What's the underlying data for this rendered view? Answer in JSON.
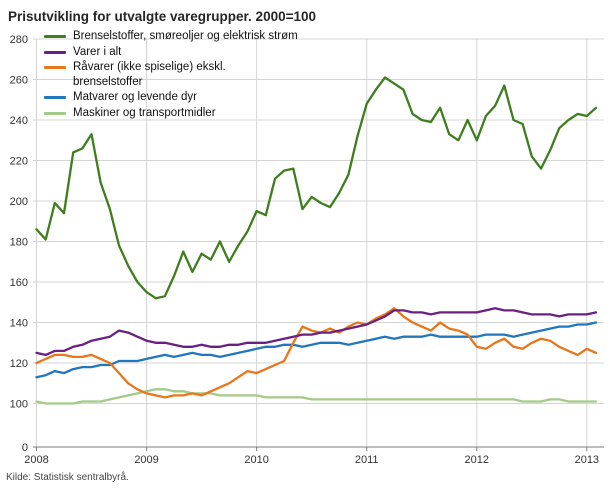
{
  "title": "Prisutvikling for utvalgte varegrupper. 2000=100",
  "source": "Kilde: Statistisk sentralbyrå.",
  "chart_data": {
    "type": "line",
    "frequency": "monthly",
    "x_start": "2008-01",
    "x_end": "2013-02",
    "x_tick_labels": [
      "2008",
      "2009",
      "2010",
      "2011",
      "2012",
      "2013"
    ],
    "y_ticks": [
      0,
      100,
      120,
      140,
      160,
      180,
      200,
      220,
      240,
      260,
      280
    ],
    "ylim_main": [
      100,
      280
    ],
    "axis_break_above_zero": true,
    "grid": true,
    "legend_position": "top-left",
    "colors": {
      "grid": "#d4d4d4",
      "axis": "#7a7a7a",
      "tick_text": "#333333"
    },
    "series": [
      {
        "name": "Brenselstoffer, smøreoljer og elektrisk strøm",
        "color": "#3f7e1e",
        "values": [
          186,
          181,
          199,
          194,
          224,
          226,
          233,
          209,
          196,
          178,
          168,
          160,
          155,
          152,
          153,
          163,
          175,
          165,
          174,
          171,
          180,
          170,
          178,
          185,
          195,
          193,
          211,
          215,
          216,
          196,
          202,
          199,
          197,
          204,
          213,
          232,
          248,
          255,
          261,
          258,
          255,
          243,
          240,
          239,
          246,
          233,
          230,
          240,
          230,
          242,
          247,
          257,
          240,
          238,
          222,
          216,
          225,
          236,
          240,
          243,
          242,
          246
        ]
      },
      {
        "name": "Varer i alt",
        "color": "#6a2082",
        "values": [
          125,
          124,
          126,
          126,
          128,
          129,
          131,
          132,
          133,
          136,
          135,
          133,
          131,
          130,
          130,
          129,
          128,
          128,
          129,
          128,
          128,
          129,
          129,
          130,
          130,
          130,
          131,
          132,
          133,
          134,
          134,
          135,
          135,
          136,
          137,
          138,
          139,
          141,
          143,
          146,
          146,
          145,
          145,
          144,
          145,
          145,
          145,
          145,
          145,
          146,
          147,
          146,
          146,
          145,
          144,
          144,
          144,
          143,
          144,
          144,
          144,
          145
        ]
      },
      {
        "name": "Råvarer (ikke spiselige) ekskl. brenselstoffer",
        "legend_label": "Råvarer (ikke spiselige) ekskl.\nbrenselstoffer",
        "color": "#e8761b",
        "values": [
          120,
          122,
          124,
          124,
          123,
          123,
          124,
          122,
          120,
          115,
          110,
          107,
          105,
          104,
          103,
          104,
          104,
          105,
          104,
          106,
          108,
          110,
          113,
          116,
          115,
          117,
          119,
          121,
          130,
          138,
          136,
          135,
          137,
          135,
          138,
          140,
          139,
          142,
          144,
          147,
          143,
          140,
          138,
          136,
          140,
          137,
          136,
          134,
          128,
          127,
          130,
          132,
          128,
          127,
          130,
          132,
          131,
          128,
          126,
          124,
          127,
          125
        ]
      },
      {
        "name": "Matvarer og levende dyr",
        "color": "#2176bd",
        "values": [
          113,
          114,
          116,
          115,
          117,
          118,
          118,
          119,
          119,
          121,
          121,
          121,
          122,
          123,
          124,
          123,
          124,
          125,
          124,
          124,
          123,
          124,
          125,
          126,
          127,
          128,
          128,
          129,
          129,
          128,
          129,
          130,
          130,
          130,
          129,
          130,
          131,
          132,
          133,
          132,
          133,
          133,
          133,
          134,
          133,
          133,
          133,
          133,
          133,
          134,
          134,
          134,
          133,
          134,
          135,
          136,
          137,
          138,
          138,
          139,
          139,
          140
        ]
      },
      {
        "name": "Maskiner og transportmidler",
        "color": "#a3ca87",
        "values": [
          101,
          100,
          100,
          100,
          100,
          101,
          101,
          101,
          102,
          103,
          104,
          105,
          106,
          107,
          107,
          106,
          106,
          105,
          105,
          105,
          104,
          104,
          104,
          104,
          104,
          103,
          103,
          103,
          103,
          103,
          102,
          102,
          102,
          102,
          102,
          102,
          102,
          102,
          102,
          102,
          102,
          102,
          102,
          102,
          102,
          102,
          102,
          102,
          102,
          102,
          102,
          102,
          102,
          101,
          101,
          101,
          102,
          102,
          101,
          101,
          101,
          101
        ]
      }
    ]
  }
}
